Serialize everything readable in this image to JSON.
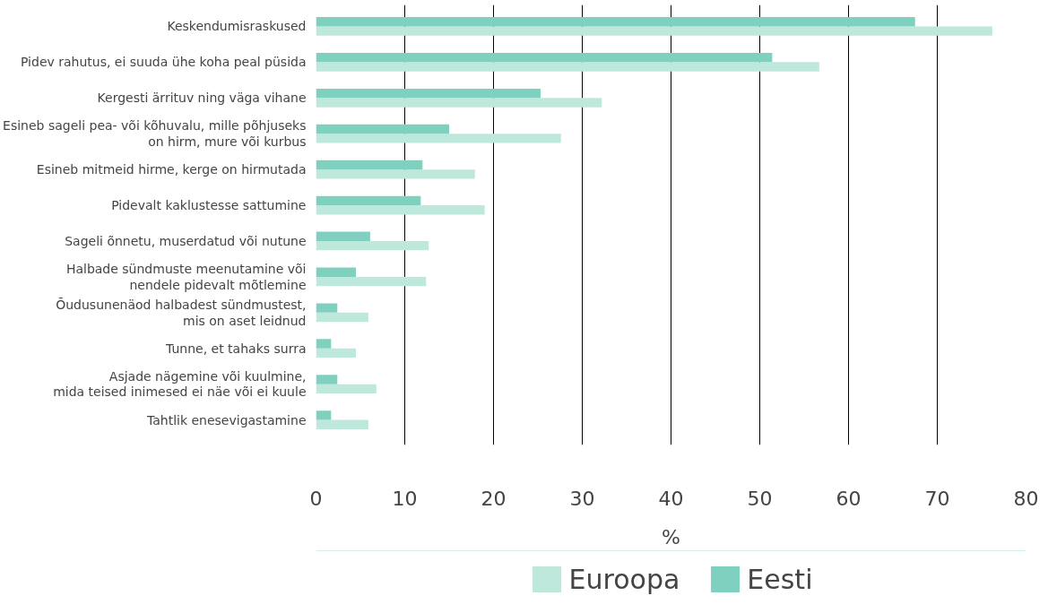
{
  "chart_data": {
    "type": "bar",
    "orientation": "horizontal",
    "xlabel": "%",
    "categories": [
      "Keskendumisraskused",
      "Pidev rahutus, ei suuda ühe koha peal püsida",
      "Kergesti ärrituv ning väga vihane",
      "Esineb sageli pea- või kõhuvalu, mille põhjuseks\non hirm, mure või kurbus",
      "Esineb mitmeid hirme, kerge on hirmutada",
      "Pidevalt kaklustesse sattumine",
      "Sageli õnnetu, muserdatud või nutune",
      "Halbade sündmuste meenutamine või\nnendele pidevalt mõtlemine",
      "Õudusunenäod halbadest sündmustest,\nmis on aset leidnud",
      "Tunne, et tahaks surra",
      "Asjade nägemine või kuulmine,\nmida teised inimesed ei näe või ei kuule",
      "Tahtlik enesevigastamine"
    ],
    "series": [
      {
        "name": "Euroopa",
        "color": "#bfe8dd",
        "values": [
          76.2,
          56.7,
          32.2,
          27.6,
          17.9,
          19.0,
          12.7,
          12.4,
          5.9,
          4.5,
          6.8,
          5.9
        ]
      },
      {
        "name": "Eesti",
        "color": "#80d0c0",
        "values": [
          67.5,
          51.4,
          25.3,
          15.0,
          12.0,
          11.8,
          6.1,
          4.5,
          2.4,
          1.7,
          2.4,
          1.7
        ]
      }
    ],
    "xlim": [
      0,
      80
    ],
    "xticks": [
      0,
      10,
      20,
      30,
      40,
      50,
      60,
      70,
      80
    ],
    "grid": "x",
    "legend": "bottom"
  }
}
